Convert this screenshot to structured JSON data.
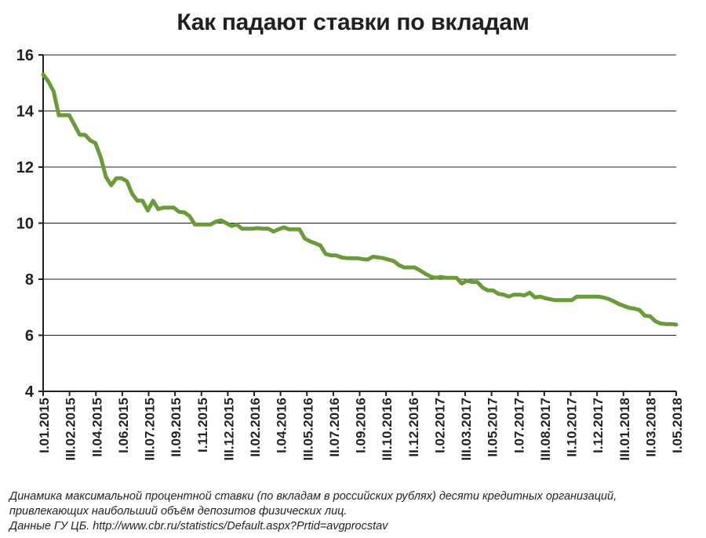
{
  "chart_data": {
    "type": "line",
    "title": "Как падают ставки по вкладам",
    "xlabel": "",
    "ylabel": "",
    "ylim": [
      4,
      16
    ],
    "yticks": [
      4,
      6,
      8,
      10,
      12,
      14,
      16
    ],
    "grid": true,
    "x_tick_labels": [
      "I.01.2015",
      "III.02.2015",
      "II.04.2015",
      "I.06.2015",
      "III.07.2015",
      "II.09.2015",
      "I.11.2015",
      "III.12.2015",
      "II.02.2016",
      "I.04.2016",
      "III.05.2016",
      "II.07.2016",
      "I.09.2016",
      "III.10.2016",
      "II.12.2016",
      "I.02.2017",
      "III.03.2017",
      "II.05.2017",
      "I.07.2017",
      "III.08.2017",
      "II.10.2017",
      "I.12.2017",
      "III.01.2018",
      "II.03.2018",
      "I.05.2018"
    ],
    "series": [
      {
        "color": "#6a9a3a",
        "values": [
          15.3,
          15.05,
          14.7,
          13.85,
          13.85,
          13.85,
          13.5,
          13.15,
          13.15,
          12.95,
          12.85,
          12.35,
          11.65,
          11.35,
          11.6,
          11.6,
          11.5,
          11.05,
          10.8,
          10.8,
          10.45,
          10.8,
          10.5,
          10.55,
          10.55,
          10.55,
          10.4,
          10.38,
          10.25,
          9.95,
          9.95,
          9.95,
          9.95,
          10.05,
          10.1,
          10.0,
          9.9,
          9.95,
          9.8,
          9.8,
          9.8,
          9.82,
          9.8,
          9.8,
          9.7,
          9.78,
          9.85,
          9.78,
          9.78,
          9.78,
          9.45,
          9.35,
          9.28,
          9.2,
          8.9,
          8.85,
          8.85,
          8.78,
          8.75,
          8.75,
          8.75,
          8.72,
          8.7,
          8.8,
          8.78,
          8.75,
          8.7,
          8.65,
          8.5,
          8.42,
          8.42,
          8.42,
          8.32,
          8.2,
          8.1,
          8.05,
          8.08,
          8.05,
          8.05,
          8.05,
          7.85,
          7.95,
          7.9,
          7.9,
          7.7,
          7.6,
          7.6,
          7.48,
          7.45,
          7.38,
          7.45,
          7.45,
          7.42,
          7.52,
          7.35,
          7.38,
          7.32,
          7.28,
          7.25,
          7.25,
          7.25,
          7.25,
          7.38,
          7.38,
          7.38,
          7.38,
          7.38,
          7.35,
          7.3,
          7.22,
          7.12,
          7.05,
          6.98,
          6.95,
          6.9,
          6.7,
          6.68,
          6.5,
          6.42,
          6.4,
          6.4,
          6.38
        ]
      }
    ]
  },
  "caption": {
    "line1": "Динамика максимальной процентной ставки (по вкладам в российских рублях) десяти кредитных организаций,",
    "line2": "привлекающих наибольший объём депозитов физических лиц.",
    "line3": "Данные ГУ ЦБ. http://www.cbr.ru/statistics/Default.aspx?Prtid=avgprocstav"
  }
}
